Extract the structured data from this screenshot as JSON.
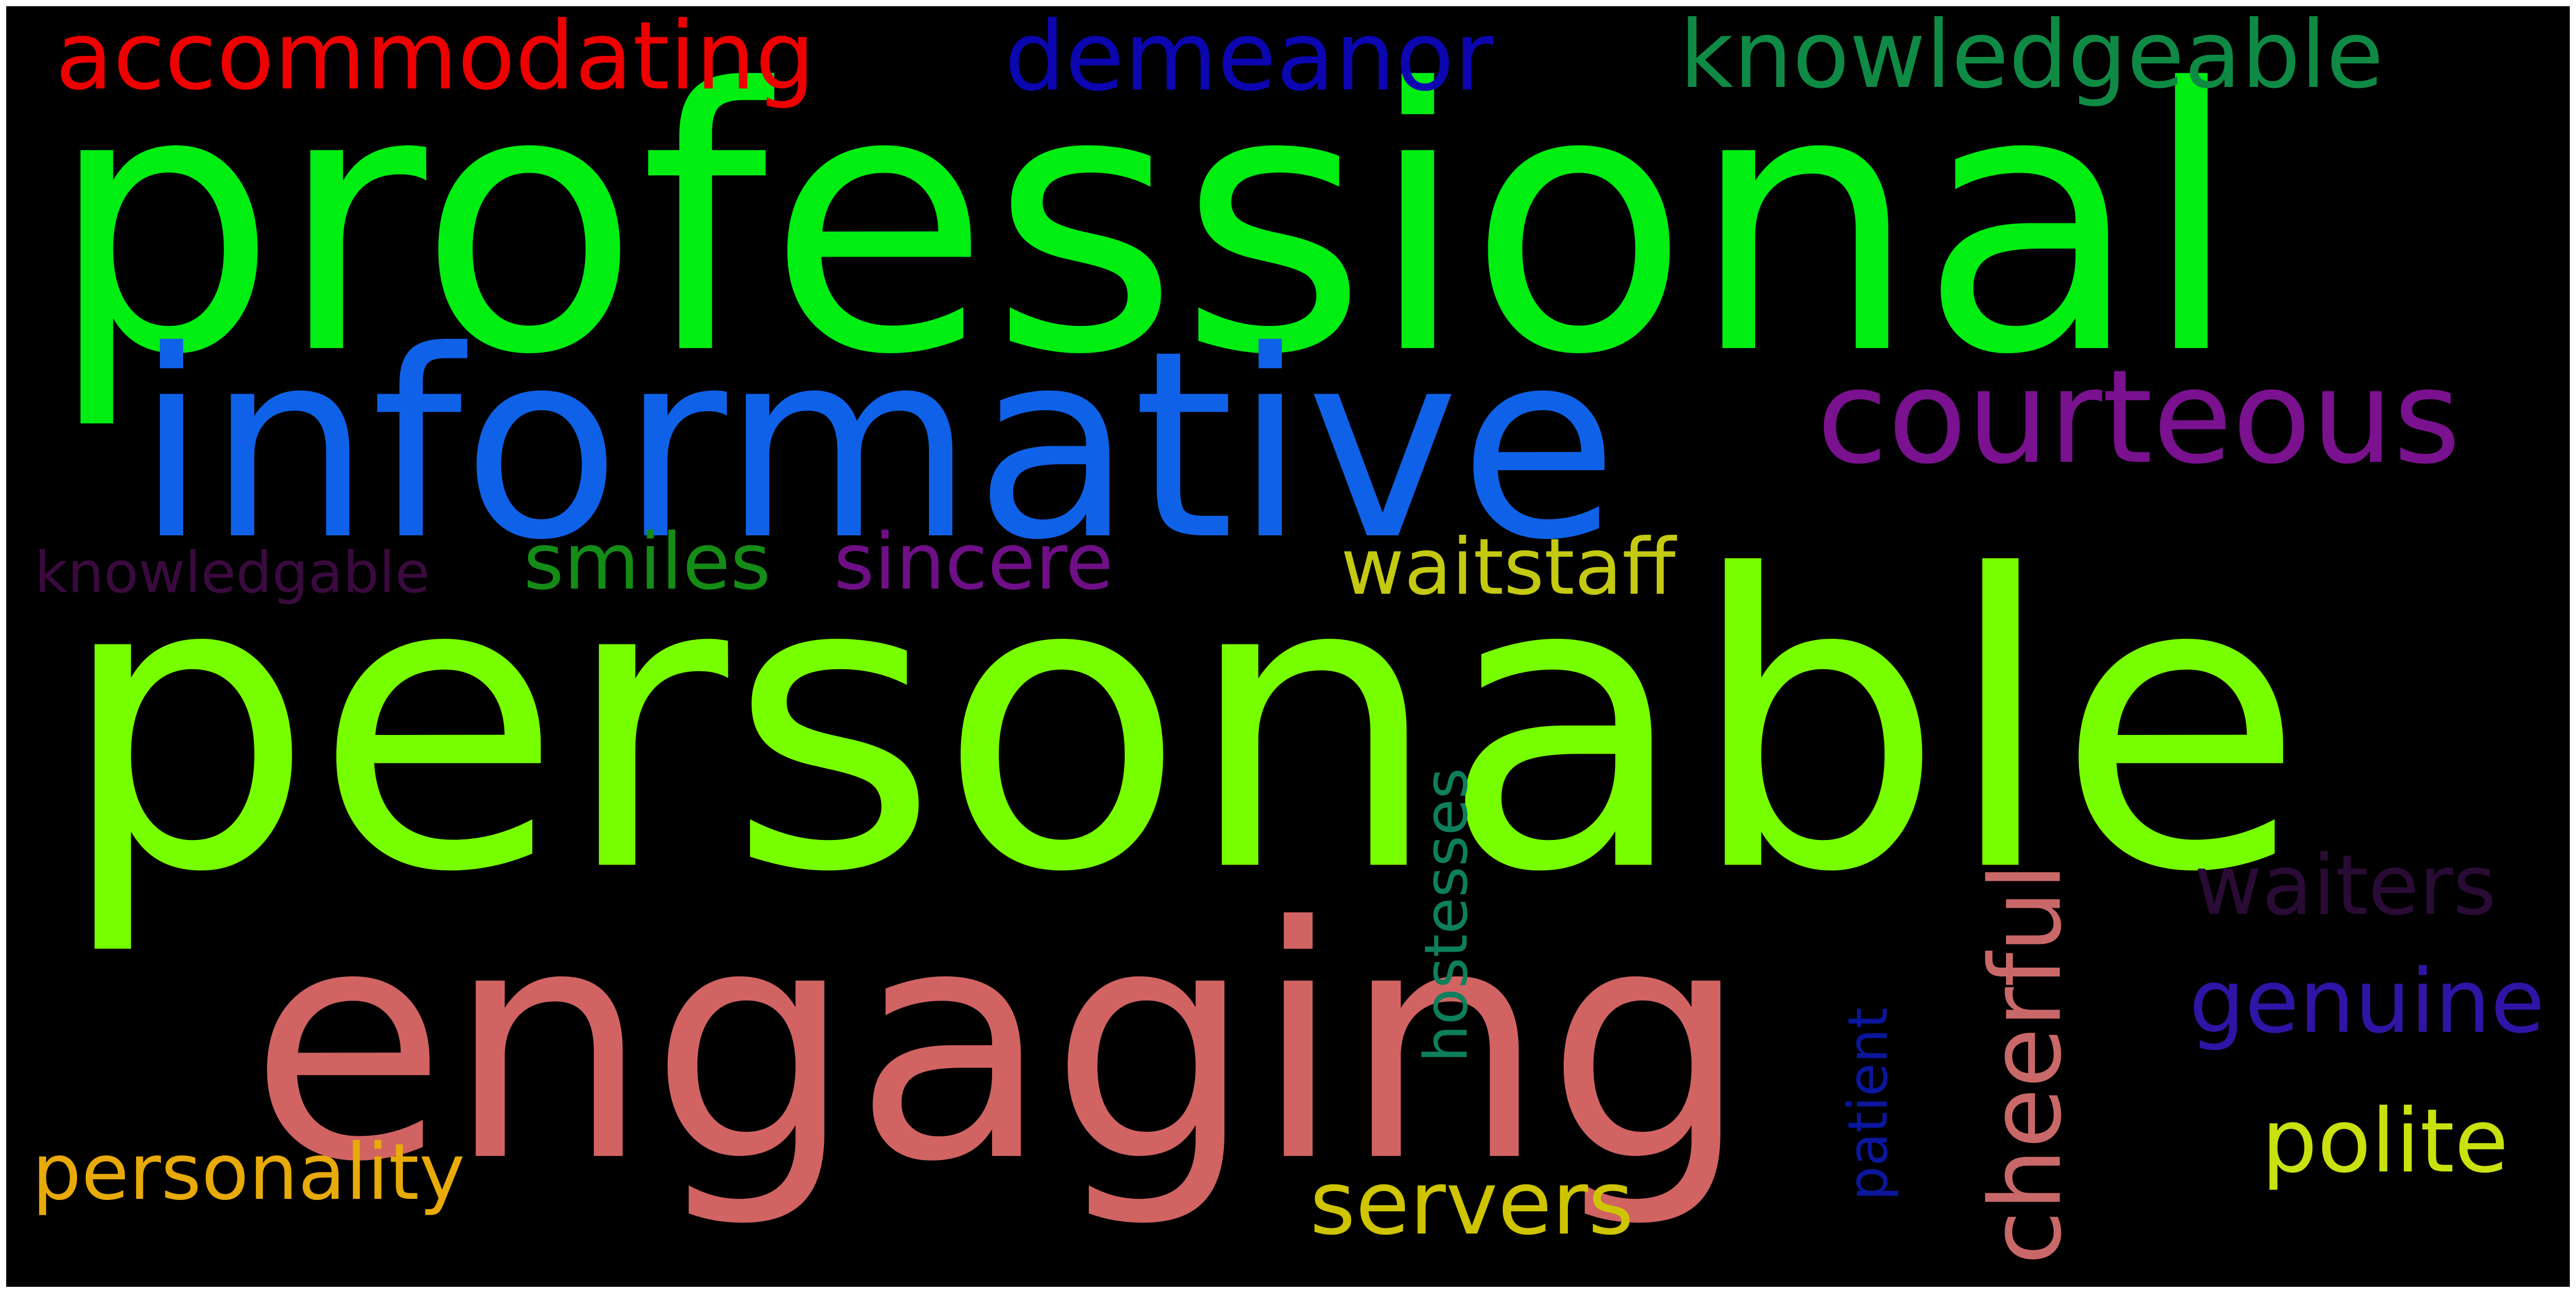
{
  "words": {
    "personable": {
      "text": "personable",
      "color": "#77ff00"
    },
    "professional": {
      "text": "professional",
      "color": "#00ee11"
    },
    "engaging": {
      "text": "engaging",
      "color": "#d16363"
    },
    "informative": {
      "text": "informative",
      "color": "#0f62e8"
    },
    "courteous": {
      "text": "courteous",
      "color": "#7a118f"
    },
    "accommodating": {
      "text": "accommodating",
      "color": "#ee0000"
    },
    "demeanor": {
      "text": "demeanor",
      "color": "#0b06b0"
    },
    "knowledgeable": {
      "text": "knowledgeable",
      "color": "#0f8a45"
    },
    "waitstaff": {
      "text": "waitstaff",
      "color": "#c4c912"
    },
    "smiles": {
      "text": "smiles",
      "color": "#148c16"
    },
    "sincere": {
      "text": "sincere",
      "color": "#6f0f86"
    },
    "knowledgable": {
      "text": "knowledgable",
      "color": "#3a0a3f"
    },
    "waiters": {
      "text": "waiters",
      "color": "#2a0b35"
    },
    "genuine": {
      "text": "genuine",
      "color": "#3014a6"
    },
    "cheerful": {
      "text": "cheerful",
      "color": "#c96868"
    },
    "hostesses": {
      "text": "hostesses",
      "color": "#0e7f5c"
    },
    "patient": {
      "text": "patient",
      "color": "#0b169d"
    },
    "polite": {
      "text": "polite",
      "color": "#c9e10e"
    },
    "servers": {
      "text": "servers",
      "color": "#cfc400"
    },
    "personality": {
      "text": "personality",
      "color": "#e8aa08"
    }
  }
}
